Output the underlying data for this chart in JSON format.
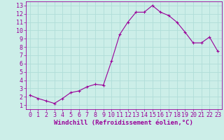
{
  "x": [
    0,
    1,
    2,
    3,
    4,
    5,
    6,
    7,
    8,
    9,
    10,
    11,
    12,
    13,
    14,
    15,
    16,
    17,
    18,
    19,
    20,
    21,
    22,
    23
  ],
  "y": [
    2.2,
    1.8,
    1.5,
    1.2,
    1.8,
    2.5,
    2.7,
    3.2,
    3.5,
    3.4,
    6.3,
    9.5,
    11.0,
    12.2,
    12.2,
    13.0,
    12.2,
    11.8,
    11.0,
    9.8,
    8.5,
    8.5,
    9.2,
    7.5
  ],
  "line_color": "#990099",
  "marker": "+",
  "marker_size": 3,
  "line_width": 0.8,
  "bg_color": "#cceee8",
  "grid_color": "#b0ddd8",
  "xlabel": "Windchill (Refroidissement éolien,°C)",
  "xlabel_fontsize": 6.5,
  "tick_fontsize": 6,
  "xlim": [
    -0.5,
    23.5
  ],
  "ylim": [
    0.5,
    13.5
  ],
  "yticks": [
    1,
    2,
    3,
    4,
    5,
    6,
    7,
    8,
    9,
    10,
    11,
    12,
    13
  ],
  "xticks": [
    0,
    1,
    2,
    3,
    4,
    5,
    6,
    7,
    8,
    9,
    10,
    11,
    12,
    13,
    14,
    15,
    16,
    17,
    18,
    19,
    20,
    21,
    22,
    23
  ]
}
